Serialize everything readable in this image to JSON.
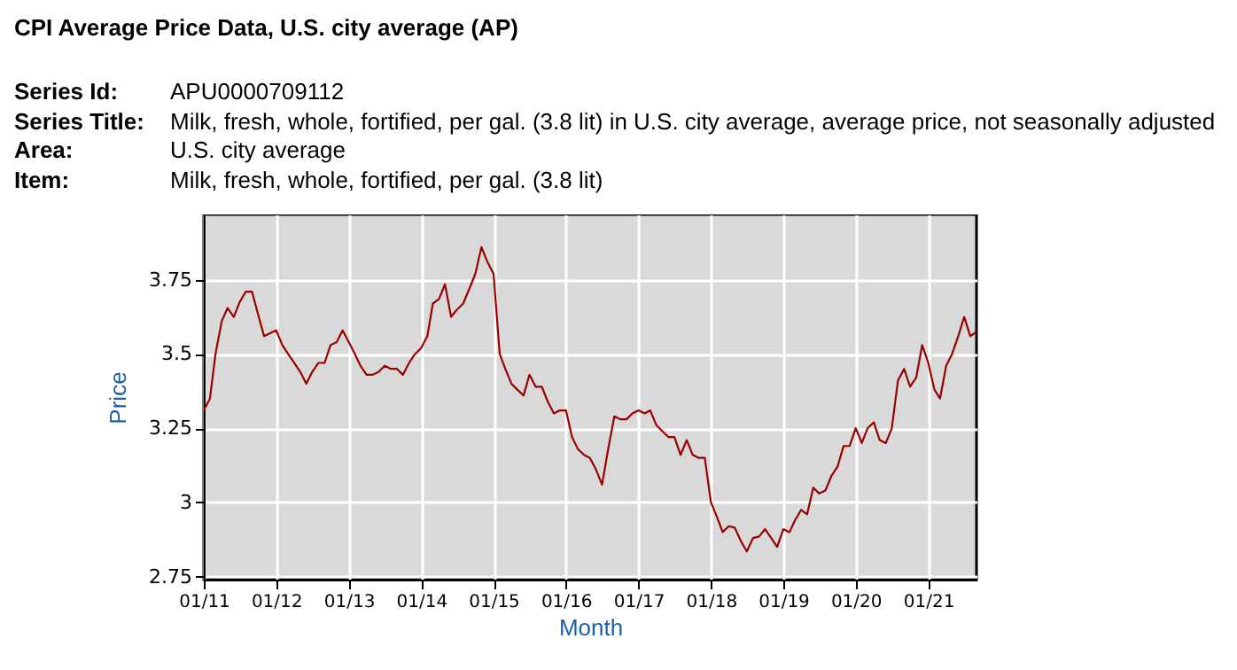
{
  "chart_data": {
    "type": "line",
    "title": "CPI Average Price Data, U.S. city average (AP)",
    "annotations": [
      "Series Id:",
      "APU0000709112",
      "Series Title:",
      "Milk, fresh, whole, fortified, per gal. (3.8 lit) in U.S. city average, average price, not seasonally adjusted",
      "Area:",
      "U.S. city average",
      "Item:",
      "Milk, fresh, whole, fortified, per gal. (3.8 lit)"
    ],
    "xlabel": "Month",
    "ylabel": "Price",
    "x": [
      "2011-01",
      "2011-02",
      "2011-03",
      "2011-04",
      "2011-05",
      "2011-06",
      "2011-07",
      "2011-08",
      "2011-09",
      "2011-10",
      "2011-11",
      "2011-12",
      "2012-01",
      "2012-02",
      "2012-03",
      "2012-04",
      "2012-05",
      "2012-06",
      "2012-07",
      "2012-08",
      "2012-09",
      "2012-10",
      "2012-11",
      "2012-12",
      "2013-01",
      "2013-02",
      "2013-03",
      "2013-04",
      "2013-05",
      "2013-06",
      "2013-07",
      "2013-08",
      "2013-09",
      "2013-10",
      "2013-11",
      "2013-12",
      "2014-01",
      "2014-02",
      "2014-03",
      "2014-04",
      "2014-05",
      "2014-06",
      "2014-07",
      "2014-08",
      "2014-09",
      "2014-10",
      "2014-11",
      "2014-12",
      "2015-01",
      "2015-02",
      "2015-03",
      "2015-04",
      "2015-05",
      "2015-06",
      "2015-07",
      "2015-08",
      "2015-09",
      "2015-10",
      "2015-11",
      "2015-12",
      "2016-01",
      "2016-02",
      "2016-03",
      "2016-04",
      "2016-05",
      "2016-06",
      "2016-07",
      "2016-08",
      "2016-09",
      "2016-10",
      "2016-11",
      "2016-12",
      "2017-01",
      "2017-02",
      "2017-03",
      "2017-04",
      "2017-05",
      "2017-06",
      "2017-07",
      "2017-08",
      "2017-09",
      "2017-10",
      "2017-11",
      "2017-12",
      "2018-01",
      "2018-02",
      "2018-03",
      "2018-04",
      "2018-05",
      "2018-06",
      "2018-07",
      "2018-08",
      "2018-09",
      "2018-10",
      "2018-11",
      "2018-12",
      "2019-01",
      "2019-02",
      "2019-03",
      "2019-04",
      "2019-05",
      "2019-06",
      "2019-07",
      "2019-08",
      "2019-09",
      "2019-10",
      "2019-11",
      "2019-12",
      "2020-01",
      "2020-02",
      "2020-03",
      "2020-04",
      "2020-05",
      "2020-06",
      "2020-07",
      "2020-08",
      "2020-09",
      "2020-10",
      "2020-11",
      "2020-12",
      "2021-01",
      "2021-02",
      "2021-03",
      "2021-04",
      "2021-05",
      "2021-06",
      "2021-07",
      "2021-08",
      "2021-09"
    ],
    "series": [
      {
        "color": "#990000",
        "values": [
          3.31,
          3.35,
          3.5,
          3.61,
          3.655,
          3.625,
          3.675,
          3.71,
          3.71,
          3.635,
          3.56,
          3.57,
          3.58,
          3.53,
          3.5,
          3.47,
          3.44,
          3.4,
          3.44,
          3.47,
          3.47,
          3.53,
          3.54,
          3.58,
          3.54,
          3.5,
          3.46,
          3.43,
          3.43,
          3.44,
          3.46,
          3.45,
          3.45,
          3.43,
          3.47,
          3.5,
          3.52,
          3.56,
          3.67,
          3.685,
          3.735,
          3.625,
          3.65,
          3.67,
          3.72,
          3.77,
          3.86,
          3.81,
          3.77,
          3.5,
          3.45,
          3.4,
          3.38,
          3.36,
          3.43,
          3.39,
          3.39,
          3.34,
          3.3,
          3.31,
          3.31,
          3.22,
          3.18,
          3.16,
          3.15,
          3.11,
          3.06,
          3.18,
          3.29,
          3.28,
          3.28,
          3.3,
          3.31,
          3.3,
          3.31,
          3.26,
          3.24,
          3.22,
          3.22,
          3.16,
          3.21,
          3.16,
          3.15,
          3.15,
          3.0,
          2.95,
          2.9,
          2.92,
          2.915,
          2.87,
          2.835,
          2.88,
          2.885,
          2.91,
          2.88,
          2.85,
          2.91,
          2.9,
          2.94,
          2.975,
          2.96,
          3.05,
          3.03,
          3.04,
          3.09,
          3.12,
          3.19,
          3.19,
          3.25,
          3.2,
          3.25,
          3.27,
          3.21,
          3.2,
          3.25,
          3.41,
          3.45,
          3.39,
          3.42,
          3.53,
          3.47,
          3.38,
          3.35,
          3.46,
          3.5,
          3.56,
          3.625,
          3.56,
          3.575
        ]
      }
    ],
    "xlim": [
      "2011-01",
      "2021-09"
    ],
    "xticks": [
      {
        "value": "2011-01",
        "label": "01/11"
      },
      {
        "value": "2012-01",
        "label": "01/12"
      },
      {
        "value": "2013-01",
        "label": "01/13"
      },
      {
        "value": "2014-01",
        "label": "01/14"
      },
      {
        "value": "2015-01",
        "label": "01/15"
      },
      {
        "value": "2016-01",
        "label": "01/16"
      },
      {
        "value": "2017-01",
        "label": "01/17"
      },
      {
        "value": "2018-01",
        "label": "01/18"
      },
      {
        "value": "2019-01",
        "label": "01/19"
      },
      {
        "value": "2020-01",
        "label": "01/20"
      },
      {
        "value": "2021-01",
        "label": "01/21"
      }
    ],
    "ylim": [
      2.74,
      3.97
    ],
    "yticks": [
      {
        "value": 2.75,
        "label": "2.75"
      },
      3,
      {
        "value": 3.25,
        "label": "3.25"
      },
      {
        "value": 3.5,
        "label": "3.5"
      },
      {
        "value": 3.75,
        "label": "3.75"
      }
    ],
    "grid": true,
    "marker": "none",
    "line_style": "solid"
  }
}
